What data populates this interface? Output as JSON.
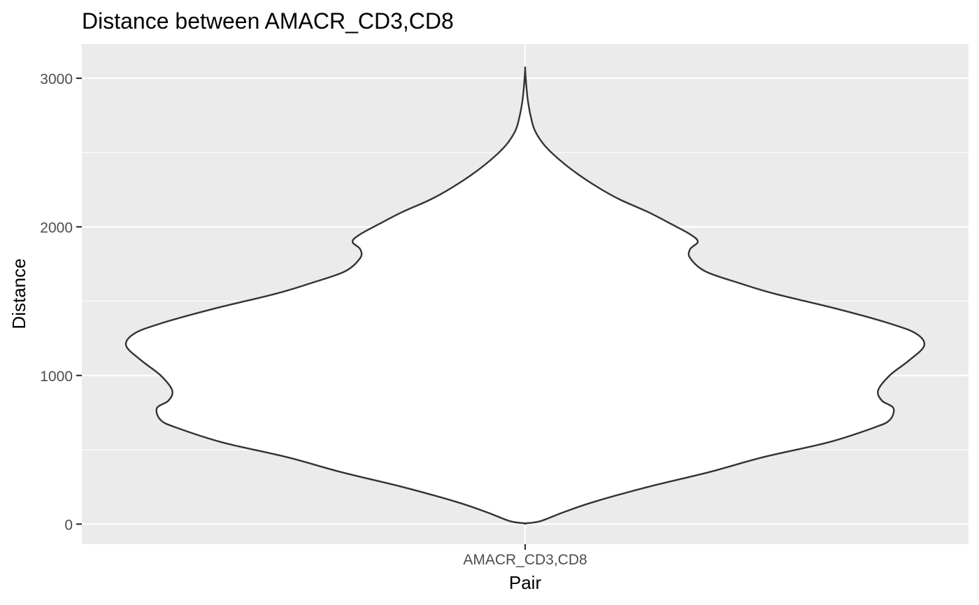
{
  "chart_data": {
    "type": "violin",
    "title": "Distance between AMACR_CD3,CD8",
    "xlabel": "Pair",
    "ylabel": "Distance",
    "categories": [
      "AMACR_CD3,CD8"
    ],
    "ylim": [
      -135,
      3230
    ],
    "y_ticks": [
      0,
      1000,
      2000,
      3000
    ],
    "grid": true,
    "colors": {
      "panel": "#ebebeb",
      "grid": "#ffffff",
      "violin_fill": "#ffffff",
      "violin_stroke": "#333333",
      "text": "#000000",
      "tick_text": "#4d4d4d"
    },
    "series": [
      {
        "category": "AMACR_CD3,CD8",
        "density": [
          {
            "y": 5,
            "w": 0.0
          },
          {
            "y": 20,
            "w": 0.04
          },
          {
            "y": 80,
            "w": 0.1
          },
          {
            "y": 150,
            "w": 0.18
          },
          {
            "y": 250,
            "w": 0.32
          },
          {
            "y": 350,
            "w": 0.48
          },
          {
            "y": 450,
            "w": 0.62
          },
          {
            "y": 550,
            "w": 0.79
          },
          {
            "y": 650,
            "w": 0.91
          },
          {
            "y": 700,
            "w": 0.95
          },
          {
            "y": 780,
            "w": 0.96
          },
          {
            "y": 830,
            "w": 0.93
          },
          {
            "y": 900,
            "w": 0.92
          },
          {
            "y": 1000,
            "w": 0.95
          },
          {
            "y": 1100,
            "w": 1.0
          },
          {
            "y": 1200,
            "w": 1.04
          },
          {
            "y": 1280,
            "w": 1.02
          },
          {
            "y": 1350,
            "w": 0.95
          },
          {
            "y": 1450,
            "w": 0.81
          },
          {
            "y": 1550,
            "w": 0.65
          },
          {
            "y": 1620,
            "w": 0.56
          },
          {
            "y": 1700,
            "w": 0.47
          },
          {
            "y": 1790,
            "w": 0.43
          },
          {
            "y": 1850,
            "w": 0.43
          },
          {
            "y": 1900,
            "w": 0.45
          },
          {
            "y": 1950,
            "w": 0.43
          },
          {
            "y": 2020,
            "w": 0.38
          },
          {
            "y": 2100,
            "w": 0.32
          },
          {
            "y": 2180,
            "w": 0.25
          },
          {
            "y": 2250,
            "w": 0.2
          },
          {
            "y": 2350,
            "w": 0.14
          },
          {
            "y": 2450,
            "w": 0.09
          },
          {
            "y": 2550,
            "w": 0.05
          },
          {
            "y": 2650,
            "w": 0.025
          },
          {
            "y": 2750,
            "w": 0.014
          },
          {
            "y": 2850,
            "w": 0.007
          },
          {
            "y": 2950,
            "w": 0.003
          },
          {
            "y": 3060,
            "w": 0.0
          }
        ]
      }
    ]
  }
}
